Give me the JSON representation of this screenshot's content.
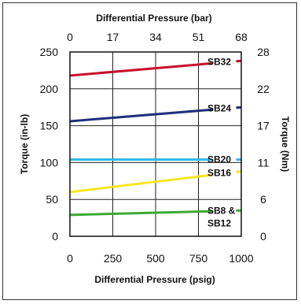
{
  "chart_data": {
    "type": "line",
    "title": "",
    "top_axis_title": "Differential Pressure (bar)",
    "xlabel": "Differential Pressure (psig)",
    "ylabel": "Torque (in-lb)",
    "y2label": "Torque (Nm)",
    "xlim": [
      0,
      1000
    ],
    "ylim": [
      0,
      250
    ],
    "x_ticks": [
      "0",
      "250",
      "500",
      "750",
      "1000"
    ],
    "x_tick_values": [
      0,
      250,
      500,
      750,
      1000
    ],
    "top_ticks": [
      "0",
      "17",
      "34",
      "51",
      "68"
    ],
    "y_ticks": [
      "0",
      "50",
      "100",
      "150",
      "200",
      "250"
    ],
    "y_tick_values": [
      0,
      50,
      100,
      150,
      200,
      250
    ],
    "y2_ticks": [
      "0",
      "6",
      "11",
      "17",
      "22",
      "28"
    ],
    "grid": true,
    "series": [
      {
        "name": "SB32",
        "label_lines": [
          "SB32"
        ],
        "color": "#c8102e",
        "x": [
          0,
          1000
        ],
        "y": [
          218,
          238
        ]
      },
      {
        "name": "SB24",
        "label_lines": [
          "SB24"
        ],
        "color": "#1f2f7a",
        "x": [
          0,
          1000
        ],
        "y": [
          156,
          175
        ]
      },
      {
        "name": "SB20",
        "label_lines": [
          "SB20"
        ],
        "color": "#2eb8e6",
        "x": [
          0,
          1000
        ],
        "y": [
          104,
          104
        ]
      },
      {
        "name": "SB16",
        "label_lines": [
          "SB16"
        ],
        "color": "#f5e623",
        "x": [
          0,
          1000
        ],
        "y": [
          60,
          88
        ]
      },
      {
        "name": "SB8 & SB12",
        "label_lines": [
          "SB8 &",
          "SB12"
        ],
        "color": "#3aa935",
        "x": [
          0,
          1000
        ],
        "y": [
          29,
          35
        ]
      }
    ]
  }
}
